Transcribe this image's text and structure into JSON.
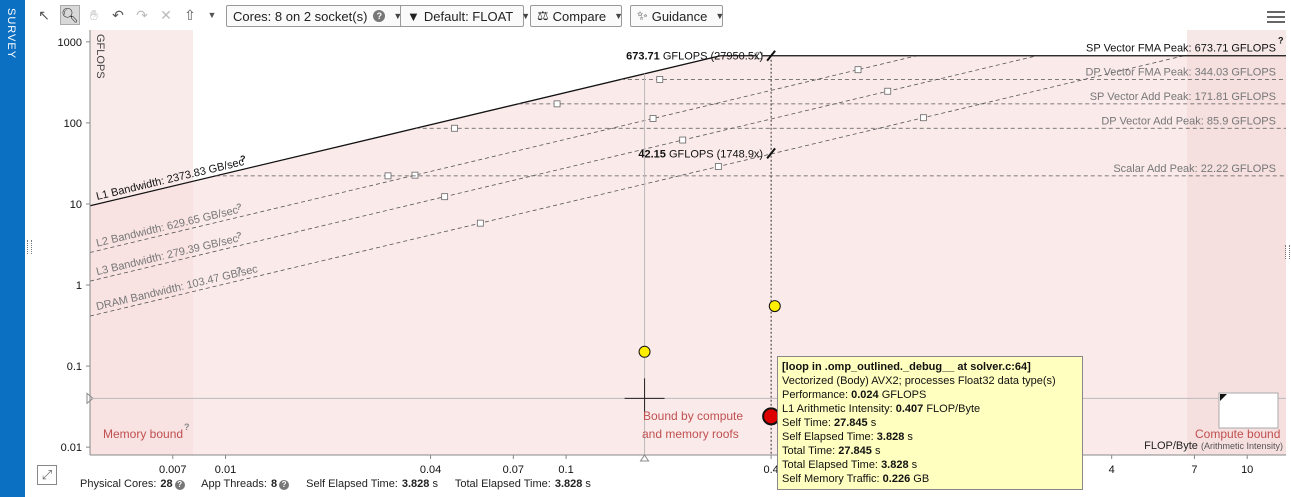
{
  "sidetab": {
    "label": "SURVEY"
  },
  "toolbar": {
    "cores_label": "Cores:",
    "cores_value": "8 on 2 socket(s)",
    "filter_value": "Default: FLOAT",
    "compare_label": "Compare",
    "guidance_label": "Guidance"
  },
  "chart_data": {
    "type": "scatter",
    "xscale": "log",
    "yscale": "log",
    "xlim": [
      0.004,
      13
    ],
    "ylim": [
      0.008,
      1400
    ],
    "xlabel": "FLOP/Byte",
    "xlabel_suffix": "(Arithmetic Intensity)",
    "ylabel": "GFLOPS",
    "x_ticks": [
      {
        "v": 0.007,
        "label": "0.007"
      },
      {
        "v": 0.01,
        "label": "0.01"
      },
      {
        "v": 0.04,
        "label": "0.04"
      },
      {
        "v": 0.07,
        "label": "0.07"
      },
      {
        "v": 0.1,
        "label": "0.1"
      },
      {
        "v": 0.4,
        "label": "0.4"
      },
      {
        "v": 4,
        "label": "4"
      },
      {
        "v": 7,
        "label": "7"
      },
      {
        "v": 10,
        "label": "10"
      }
    ],
    "y_ticks": [
      {
        "v": 1000,
        "label": "1000"
      },
      {
        "v": 100,
        "label": "100"
      },
      {
        "v": 10,
        "label": "10"
      },
      {
        "v": 1,
        "label": "1"
      },
      {
        "v": 0.1,
        "label": "0.1"
      },
      {
        "v": 0.01,
        "label": "0.01"
      }
    ],
    "bandwidth_roofs": [
      {
        "name": "L1 Bandwidth: 2373.83 GB/sec",
        "gbs": 2373.83,
        "style": "solid"
      },
      {
        "name": "L2 Bandwidth: 629.65 GB/sec",
        "gbs": 629.65,
        "style": "dashed"
      },
      {
        "name": "L3 Bandwidth: 279.39 GB/sec",
        "gbs": 279.39,
        "style": "dashed"
      },
      {
        "name": "DRAM Bandwidth: 103.47 GB/sec",
        "gbs": 103.47,
        "style": "dashed"
      }
    ],
    "compute_roofs": [
      {
        "name": "SP Vector FMA Peak: 673.71 GFLOPS",
        "gflops": 673.71,
        "style": "solid"
      },
      {
        "name": "DP Vector FMA Peak: 344.03 GFLOPS",
        "gflops": 344.03,
        "style": "dashed"
      },
      {
        "name": "SP Vector Add Peak: 171.81 GFLOPS",
        "gflops": 171.81,
        "style": "dashed"
      },
      {
        "name": "DP Vector Add Peak: 85.9 GFLOPS",
        "gflops": 85.9,
        "style": "dashed"
      },
      {
        "name": "Scalar Add Peak: 22.22 GFLOPS",
        "gflops": 22.22,
        "style": "dashed"
      }
    ],
    "points": [
      {
        "x": 0.17,
        "y": 0.15,
        "color": "#ffee00",
        "selected": false
      },
      {
        "x": 0.41,
        "y": 0.55,
        "color": "#ffee00",
        "selected": false
      },
      {
        "x": 0.4,
        "y": 0.024,
        "color": "#dd0000",
        "selected": true
      }
    ],
    "marker_labels": [
      {
        "bold": "673.71",
        "text": "GFLOPS",
        "paren": "(27950.5x)"
      },
      {
        "bold": "42.15",
        "text": "GFLOPS",
        "paren": "(1748.9x)"
      }
    ],
    "region_labels": {
      "memory_bound": "Memory bound",
      "bound_both_line1": "Bound by compute",
      "bound_both_line2": "and memory roofs",
      "compute_bound": "Compute bound"
    }
  },
  "tooltip": {
    "title": "[loop in .omp_outlined._debug__ at solver.c:64]",
    "line1": "Vectorized (Body) AVX2; processes Float32 data type(s)",
    "perf_label": "Performance:",
    "perf_value": "0.024",
    "perf_unit": "GFLOPS",
    "ai_label": "L1 Arithmetic Intensity:",
    "ai_value": "0.407",
    "ai_unit": "FLOP/Byte",
    "self_time_label": "Self Time:",
    "self_time_value": "27.845",
    "self_time_unit": "s",
    "self_elapsed_label": "Self Elapsed Time:",
    "self_elapsed_value": "3.828",
    "self_elapsed_unit": "s",
    "total_time_label": "Total Time:",
    "total_time_value": "27.845",
    "total_time_unit": "s",
    "total_elapsed_label": "Total Elapsed Time:",
    "total_elapsed_value": "3.828",
    "total_elapsed_unit": "s",
    "mem_label": "Self Memory Traffic:",
    "mem_value": "0.226",
    "mem_unit": "GB"
  },
  "footer": {
    "phys_label": "Physical Cores:",
    "phys_value": "28",
    "threads_label": "App Threads:",
    "threads_value": "8",
    "self_label": "Self Elapsed Time:",
    "self_value": "3.828",
    "self_unit": "s",
    "total_label": "Total Elapsed Time:",
    "total_value": "3.828",
    "total_unit": "s"
  }
}
